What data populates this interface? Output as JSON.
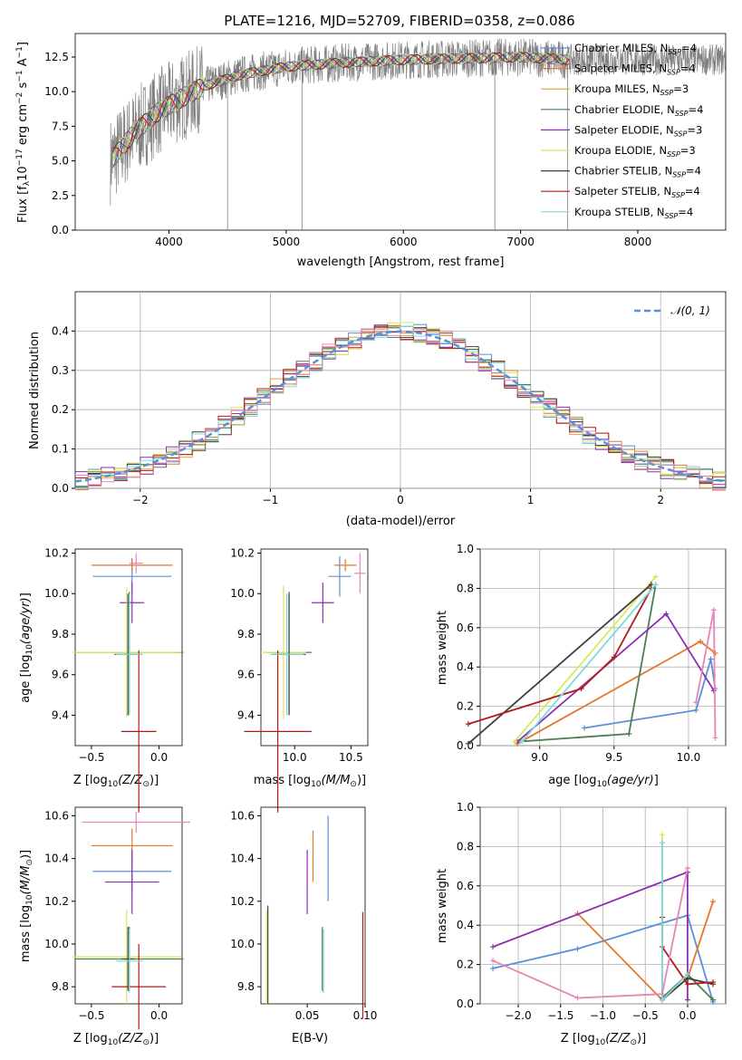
{
  "figure_title": "PLATE=1216, MJD=52709, FIBERID=0358, z=0.086",
  "colors": {
    "Chabrier MILES": "#5b8fd9",
    "Salpeter MILES": "#e3772d",
    "Kroupa MILES": "#d9a441",
    "Chabrier ELODIE": "#4e7d53",
    "Salpeter ELODIE": "#8e2fb0",
    "Kroupa ELODIE": "#d8e85a",
    "Chabrier STELIB": "#3f3f3f",
    "Salpeter STELIB": "#b01a1a",
    "Kroupa STELIB": "#7fd9db",
    "pink": "#e784b8",
    "gauss": "#5b8fd9",
    "data": "#808080"
  },
  "chart_data": [
    {
      "type": "line",
      "panel": "spectrum",
      "title": "PLATE=1216, MJD=52709, FIBERID=0358, z=0.086",
      "xlabel": "wavelength [Angstrom, rest frame]",
      "ylabel": "Flux [f_λ 10^-17 erg cm^-2 s^-1 A^-1]",
      "xlim": [
        3200,
        8750
      ],
      "ylim": [
        0,
        14.2
      ],
      "xticks": [
        "4000",
        "5000",
        "6000",
        "7000",
        "8000"
      ],
      "yticks": [
        "0.0",
        "2.5",
        "5.0",
        "7.5",
        "10.0",
        "12.5"
      ],
      "continuum": {
        "wavelength": [
          3500,
          3700,
          3900,
          4100,
          4300,
          4600,
          5000,
          5500,
          6000,
          6500,
          7000,
          7400
        ],
        "flux": [
          5.0,
          7.0,
          8.5,
          9.5,
          10.4,
          11.2,
          11.8,
          12.1,
          12.3,
          12.4,
          12.5,
          12.3
        ]
      },
      "legend": [
        {
          "label": "Chabrier MILES, N",
          "sub": "SSP",
          "eq": "=4"
        },
        {
          "label": "Salpeter MILES, N",
          "sub": "SSP",
          "eq": "=4"
        },
        {
          "label": "Kroupa MILES, N",
          "sub": "SSP",
          "eq": "=3"
        },
        {
          "label": "Chabrier ELODIE, N",
          "sub": "SSP",
          "eq": "=4"
        },
        {
          "label": "Salpeter ELODIE, N",
          "sub": "SSP",
          "eq": "=3"
        },
        {
          "label": "Kroupa ELODIE, N",
          "sub": "SSP",
          "eq": "=3"
        },
        {
          "label": "Chabrier STELIB, N",
          "sub": "SSP",
          "eq": "=4"
        },
        {
          "label": "Salpeter STELIB, N",
          "sub": "SSP",
          "eq": "=4"
        },
        {
          "label": "Kroupa STELIB, N",
          "sub": "SSP",
          "eq": "=4"
        }
      ],
      "legend_placement": "right"
    },
    {
      "type": "line",
      "panel": "residuals",
      "xlabel": "(data-model)/error",
      "ylabel": "Normed distribution",
      "xlim": [
        -2.5,
        2.5
      ],
      "ylim": [
        0,
        0.5
      ],
      "xticks": [
        "−2",
        "−1",
        "0",
        "1",
        "2"
      ],
      "yticks": [
        "0.0",
        "0.1",
        "0.2",
        "0.3",
        "0.4"
      ],
      "grid": true,
      "legend": [
        "𝒩(0, 1)"
      ],
      "legend_placement": "top-right"
    },
    {
      "type": "scatter",
      "panel": "age-vs-Z",
      "xlabel": "Z [log10(Z/Z⊙)]",
      "ylabel": "age  [log10(age/yr)]",
      "xlim": [
        -0.62,
        0.17
      ],
      "ylim": [
        9.25,
        10.22
      ],
      "xticks": [
        "−0.5",
        "0.0"
      ],
      "yticks": [
        "9.4",
        "9.6",
        "9.8",
        "10.0",
        "10.2"
      ],
      "points": [
        {
          "series": "Chabrier MILES",
          "x": -0.2,
          "y": 10.085
        },
        {
          "series": "Salpeter MILES",
          "x": -0.2,
          "y": 10.14
        },
        {
          "series": "Chabrier ELODIE",
          "x": -0.22,
          "y": 9.71
        },
        {
          "series": "Salpeter ELODIE",
          "x": -0.2,
          "y": 9.955
        },
        {
          "series": "Kroupa ELODIE",
          "x": -0.24,
          "y": 9.71
        },
        {
          "series": "Chabrier STELIB",
          "x": -0.23,
          "y": 9.7
        },
        {
          "series": "Salpeter STELIB",
          "x": -0.15,
          "y": 9.32
        },
        {
          "series": "Kroupa STELIB",
          "x": -0.22,
          "y": 9.7
        },
        {
          "series": "pink",
          "x": -0.17,
          "y": 10.15
        }
      ]
    },
    {
      "type": "scatter",
      "panel": "age-vs-mass",
      "xlabel": "mass [log10(M/M⊙)]",
      "xlim": [
        9.7,
        10.65
      ],
      "ylim": [
        9.25,
        10.22
      ],
      "xticks": [
        "10.0",
        "10.5"
      ],
      "yticks": [
        "9.4",
        "9.6",
        "9.8",
        "10.0",
        "10.2"
      ]
    },
    {
      "type": "line",
      "panel": "mass-weight-vs-age",
      "xlabel": "age  [log10(age/yr)]",
      "ylabel": "mass weight",
      "xlim": [
        8.6,
        10.25
      ],
      "ylim": [
        0,
        1
      ],
      "xticks": [
        "9.0",
        "9.5",
        "10.0"
      ],
      "yticks": [
        "0.0",
        "0.2",
        "0.4",
        "0.6",
        "0.8",
        "1.0"
      ],
      "grid": true,
      "series": [
        {
          "name": "Chabrier MILES",
          "x": [
            9.3,
            10.05,
            10.15,
            10.18
          ],
          "y": [
            0.09,
            0.18,
            0.44,
            0.29
          ]
        },
        {
          "name": "Salpeter MILES",
          "x": [
            8.85,
            10.08,
            10.18
          ],
          "y": [
            0.01,
            0.53,
            0.47
          ]
        },
        {
          "name": "Chabrier ELODIE",
          "x": [
            8.85,
            9.6,
            9.78
          ],
          "y": [
            0.02,
            0.06,
            0.82
          ]
        },
        {
          "name": "Salpeter ELODIE",
          "x": [
            8.85,
            9.85,
            10.17
          ],
          "y": [
            0.02,
            0.67,
            0.28
          ]
        },
        {
          "name": "Kroupa ELODIE",
          "x": [
            8.83,
            9.78
          ],
          "y": [
            0.02,
            0.86
          ]
        },
        {
          "name": "Chabrier STELIB",
          "x": [
            8.52,
            9.75
          ],
          "y": [
            0.01,
            0.82
          ]
        },
        {
          "name": "Salpeter STELIB",
          "x": [
            8.52,
            9.28,
            9.5,
            9.75
          ],
          "y": [
            0.11,
            0.29,
            0.45,
            0.8
          ]
        },
        {
          "name": "Kroupa STELIB",
          "x": [
            8.88,
            9.78
          ],
          "y": [
            0.02,
            0.82
          ]
        },
        {
          "name": "pink",
          "x": [
            10.05,
            10.17,
            10.18
          ],
          "y": [
            0.22,
            0.69,
            0.04
          ]
        }
      ]
    },
    {
      "type": "scatter",
      "panel": "mass-vs-Z",
      "xlabel": "Z [log10(Z/Z⊙)]",
      "ylabel": "mass [log10(M/M⊙)]",
      "xlim": [
        -0.62,
        0.17
      ],
      "ylim": [
        9.72,
        10.64
      ],
      "xticks": [
        "−0.5",
        "0.0"
      ],
      "yticks": [
        "9.8",
        "10.0",
        "10.2",
        "10.4",
        "10.6"
      ]
    },
    {
      "type": "scatter",
      "panel": "mass-vs-EBV",
      "xlabel": "E(B-V)",
      "xlim": [
        0.01,
        0.1
      ],
      "ylim": [
        9.72,
        10.64
      ],
      "xticks": [
        "0.05",
        "0.10"
      ],
      "yticks": [
        "9.8",
        "10.0",
        "10.2",
        "10.4",
        "10.6"
      ]
    },
    {
      "type": "line",
      "panel": "mass-weight-vs-Z",
      "xlabel": "Z [log10(Z/Z⊙)]",
      "ylabel": "mass weight",
      "xlim": [
        -2.45,
        0.45
      ],
      "ylim": [
        0,
        1
      ],
      "xticks": [
        "−2.0",
        "−1.5",
        "−1.0",
        "−0.5",
        "0.0"
      ],
      "yticks": [
        "0.0",
        "0.2",
        "0.4",
        "0.6",
        "0.8",
        "1.0"
      ],
      "grid": true,
      "series": [
        {
          "name": "Chabrier MILES",
          "x": [
            -2.3,
            -1.3,
            0.0,
            0.3
          ],
          "y": [
            0.18,
            0.28,
            0.45,
            0.01
          ]
        },
        {
          "name": "Salpeter MILES",
          "x": [
            -1.3,
            -0.3,
            0.0,
            0.3
          ],
          "y": [
            0.46,
            0.02,
            0.13,
            0.52
          ]
        },
        {
          "name": "Chabrier ELODIE",
          "x": [
            -0.3,
            -0.3,
            0.0,
            0.3
          ],
          "y": [
            0.82,
            0.03,
            0.15,
            0.02
          ]
        },
        {
          "name": "Salpeter ELODIE",
          "x": [
            -2.3,
            0.0,
            0.0
          ],
          "y": [
            0.29,
            0.67,
            0.02
          ]
        },
        {
          "name": "Kroupa ELODIE",
          "x": [
            -0.3,
            -0.3,
            0.0
          ],
          "y": [
            0.86,
            0.02,
            0.13
          ]
        },
        {
          "name": "Chabrier STELIB",
          "x": [
            -0.3,
            0.0,
            0.3
          ],
          "y": [
            0.02,
            0.13,
            0.1
          ]
        },
        {
          "name": "Salpeter STELIB",
          "x": [
            -0.3,
            -0.3,
            0.0,
            0.3
          ],
          "y": [
            0.44,
            0.29,
            0.1,
            0.11
          ]
        },
        {
          "name": "Kroupa STELIB",
          "x": [
            -0.3,
            -0.3,
            0.0
          ],
          "y": [
            0.82,
            0.02,
            0.15
          ]
        },
        {
          "name": "pink",
          "x": [
            -2.3,
            -1.3,
            -0.3,
            0.0
          ],
          "y": [
            0.22,
            0.03,
            0.05,
            0.69
          ]
        }
      ]
    }
  ]
}
